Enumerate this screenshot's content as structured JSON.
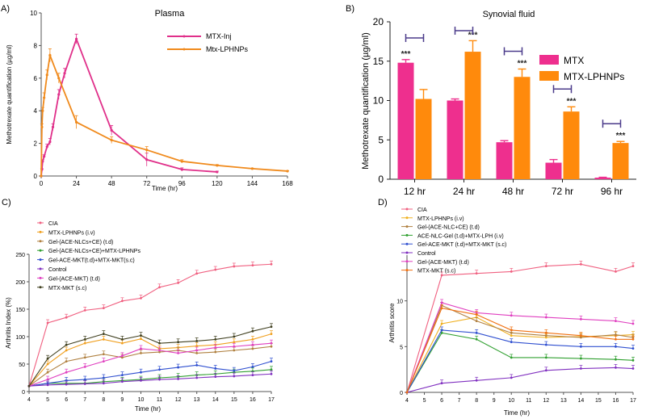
{
  "chart_data": [
    {
      "panel_label": "A)",
      "type": "line",
      "title": "Plasma",
      "xlabel": "Time (hr)",
      "ylabel": "Methotrexate quantification (µg/ml)",
      "xlim": [
        0,
        168
      ],
      "ylim": [
        0,
        10
      ],
      "xticks": [
        0,
        24,
        48,
        72,
        96,
        120,
        144,
        168
      ],
      "yticks": [
        0,
        2,
        4,
        6,
        8,
        10
      ],
      "legend_position": "right",
      "series": [
        {
          "name": "MTX-Inj",
          "color": "#e0308a",
          "x": [
            0,
            0.5,
            1,
            2,
            4,
            6,
            8,
            12,
            16,
            24,
            48,
            72,
            96,
            120
          ],
          "y": [
            0,
            0.4,
            0.9,
            1.2,
            1.8,
            2.1,
            3.0,
            5.0,
            6.3,
            8.4,
            2.8,
            1.0,
            0.4,
            0.25
          ],
          "err": [
            0,
            0.05,
            0.1,
            0.1,
            0.15,
            0.2,
            0.2,
            0.3,
            0.3,
            0.3,
            0.3,
            0.4,
            0.1,
            0.05
          ]
        },
        {
          "name": "Mtx-LPHNPs",
          "color": "#f08a1c",
          "x": [
            0,
            0.5,
            1,
            2,
            4,
            6,
            12,
            24,
            48,
            72,
            96,
            120,
            144,
            168
          ],
          "y": [
            0,
            3.0,
            4.0,
            4.8,
            6.2,
            7.4,
            6.0,
            3.3,
            2.2,
            1.6,
            0.9,
            0.65,
            0.45,
            0.3
          ],
          "err": [
            0,
            0.2,
            0.2,
            0.3,
            0.3,
            0.4,
            0.3,
            0.4,
            0.2,
            0.2,
            0.1,
            0.05,
            0.03,
            0.03
          ]
        }
      ]
    },
    {
      "panel_label": "B)",
      "type": "bar",
      "title": "Synovial fluid",
      "xlabel": "",
      "ylabel": "Methotrexate quantification (µg/ml)",
      "ylim": [
        0,
        20
      ],
      "yticks": [
        0,
        5,
        10,
        15,
        20
      ],
      "categories": [
        "12 hr",
        "24 hr",
        "48 hr",
        "72 hr",
        "96 hr"
      ],
      "legend_position": "right",
      "significance": [
        "***",
        "***",
        "***",
        "***",
        "***"
      ],
      "series": [
        {
          "name": "MTX",
          "color": "#ee2f8e",
          "values": [
            14.8,
            10.0,
            4.7,
            2.1,
            0.2
          ],
          "err": [
            0.4,
            0.2,
            0.2,
            0.4,
            0.05
          ]
        },
        {
          "name": "MTX-LPHNPs",
          "color": "#ff8a0c",
          "values": [
            10.2,
            16.2,
            13.0,
            8.6,
            4.6
          ],
          "err": [
            1.2,
            1.4,
            1.0,
            0.6,
            0.2
          ]
        }
      ]
    },
    {
      "panel_label": "C)",
      "type": "line",
      "title": "",
      "xlabel": "Time (hr)",
      "ylabel": "Arthritis Index (%)",
      "xlim": [
        4,
        17
      ],
      "ylim": [
        0,
        250
      ],
      "xticks": [
        4,
        5,
        6,
        7,
        8,
        9,
        10,
        11,
        12,
        13,
        14,
        15,
        16,
        17
      ],
      "yticks": [
        0,
        50,
        100,
        150,
        200,
        250
      ],
      "legend_position": "top-left",
      "series": [
        {
          "name": "CIA",
          "color": "#f06080",
          "x": [
            4,
            5,
            6,
            7,
            8,
            9,
            10,
            11,
            12,
            13,
            14,
            15,
            16,
            17
          ],
          "y": [
            10,
            125,
            135,
            148,
            152,
            165,
            170,
            190,
            198,
            215,
            222,
            228,
            230,
            232
          ]
        },
        {
          "name": "MTX-LPHNPs (i.v)",
          "color": "#f0a020",
          "x": [
            4,
            5,
            6,
            7,
            8,
            9,
            10,
            11,
            12,
            13,
            14,
            15,
            16,
            17
          ],
          "y": [
            10,
            50,
            75,
            88,
            95,
            88,
            96,
            78,
            80,
            83,
            85,
            90,
            95,
            105
          ]
        },
        {
          "name": "Gel-(ACE-NLCs+CE) (t.d)",
          "color": "#b08040",
          "x": [
            4,
            5,
            6,
            7,
            8,
            9,
            10,
            11,
            12,
            13,
            14,
            15,
            16,
            17
          ],
          "y": [
            10,
            35,
            55,
            62,
            68,
            62,
            70,
            72,
            75,
            70,
            72,
            75,
            78,
            82
          ]
        },
        {
          "name": "Gel-(ACE-NLCs+CE)+MTX-LPHNPs",
          "color": "#30a030",
          "x": [
            4,
            5,
            6,
            7,
            8,
            9,
            10,
            11,
            12,
            13,
            14,
            15,
            16,
            17
          ],
          "y": [
            10,
            15,
            15,
            15,
            18,
            20,
            22,
            25,
            27,
            30,
            32,
            35,
            37,
            40
          ]
        },
        {
          "name": "Gel-ACE-MKT(t.d)+MTX-MKT(s.c)",
          "color": "#3050d0",
          "x": [
            4,
            5,
            6,
            7,
            8,
            9,
            10,
            11,
            12,
            13,
            14,
            15,
            16,
            17
          ],
          "y": [
            10,
            15,
            20,
            22,
            25,
            30,
            35,
            40,
            44,
            48,
            42,
            38,
            45,
            55
          ]
        },
        {
          "name": "Control",
          "color": "#8030c0",
          "x": [
            4,
            5,
            6,
            7,
            8,
            9,
            10,
            11,
            12,
            13,
            14,
            15,
            16,
            17
          ],
          "y": [
            10,
            12,
            13,
            14,
            15,
            18,
            20,
            22,
            23,
            25,
            27,
            28,
            30,
            32
          ]
        },
        {
          "name": "Gel-(ACE-MKT) (t.d)",
          "color": "#e040c0",
          "x": [
            4,
            5,
            6,
            7,
            8,
            9,
            10,
            11,
            12,
            13,
            14,
            15,
            16,
            17
          ],
          "y": [
            10,
            22,
            35,
            45,
            55,
            65,
            78,
            75,
            70,
            75,
            80,
            82,
            85,
            88
          ]
        },
        {
          "name": "MTX-MKT (s.c)",
          "color": "#404020",
          "x": [
            4,
            5,
            6,
            7,
            8,
            9,
            10,
            11,
            12,
            13,
            14,
            15,
            16,
            17
          ],
          "y": [
            10,
            60,
            85,
            95,
            105,
            95,
            102,
            88,
            90,
            92,
            95,
            100,
            110,
            118
          ]
        }
      ]
    },
    {
      "panel_label": "D)",
      "type": "line",
      "title": "",
      "xlabel": "Time (hr)",
      "ylabel": "Arthritis score",
      "xlim": [
        4,
        17
      ],
      "ylim": [
        0,
        15
      ],
      "xticks": [
        4,
        5,
        6,
        7,
        8,
        9,
        10,
        11,
        12,
        13,
        14,
        15,
        16,
        17
      ],
      "yticks": [
        0,
        5,
        10
      ],
      "legend_position": "top-left",
      "series": [
        {
          "name": "CIA",
          "color": "#f06080",
          "x": [
            4,
            6,
            8,
            10,
            12,
            14,
            16,
            17
          ],
          "y": [
            0,
            12.8,
            13.0,
            13.2,
            13.8,
            14.0,
            13.2,
            13.8
          ]
        },
        {
          "name": "MTX-LPHNPs (i.v)",
          "color": "#f0b020",
          "x": [
            4,
            6,
            8,
            10,
            12,
            14,
            16,
            17
          ],
          "y": [
            0,
            7.5,
            8.2,
            6.2,
            6.0,
            6.1,
            6.2,
            6.3
          ]
        },
        {
          "name": "Gel-(ACE-NLC+CE) (t.d)",
          "color": "#b08040",
          "x": [
            4,
            6,
            8,
            10,
            12,
            14,
            16,
            17
          ],
          "y": [
            0,
            9.5,
            7.8,
            6.5,
            6.2,
            6.0,
            6.3,
            6.0
          ]
        },
        {
          "name": "ACE-NLC-Gel (t.d)+MTX-LPH (i.v)",
          "color": "#30a030",
          "x": [
            4,
            6,
            8,
            10,
            12,
            14,
            16,
            17
          ],
          "y": [
            0,
            6.5,
            5.8,
            3.8,
            3.8,
            3.7,
            3.6,
            3.5
          ]
        },
        {
          "name": "Gel-ACE-MKT (t.d)+MTX-MKT (s.c)",
          "color": "#3050d0",
          "x": [
            4,
            6,
            8,
            10,
            12,
            14,
            16,
            17
          ],
          "y": [
            0,
            6.8,
            6.5,
            5.5,
            5.2,
            5.0,
            5.0,
            4.8
          ]
        },
        {
          "name": "Control",
          "color": "#8030c0",
          "x": [
            4,
            6,
            8,
            10,
            12,
            14,
            16,
            17
          ],
          "y": [
            0,
            1.0,
            1.3,
            1.6,
            2.4,
            2.6,
            2.7,
            2.6
          ]
        },
        {
          "name": "Gel-(ACE-MKT) (t.d)",
          "color": "#e040c0",
          "x": [
            4,
            6,
            8,
            10,
            12,
            14,
            16,
            17
          ],
          "y": [
            0,
            9.8,
            8.7,
            8.4,
            8.2,
            8.0,
            7.8,
            7.5
          ]
        },
        {
          "name": "MTX-MKT (s.c)",
          "color": "#f07010",
          "x": [
            4,
            6,
            8,
            10,
            12,
            14,
            16,
            17
          ],
          "y": [
            0,
            9.2,
            8.5,
            6.8,
            6.5,
            6.2,
            5.8,
            5.8
          ]
        }
      ]
    }
  ]
}
